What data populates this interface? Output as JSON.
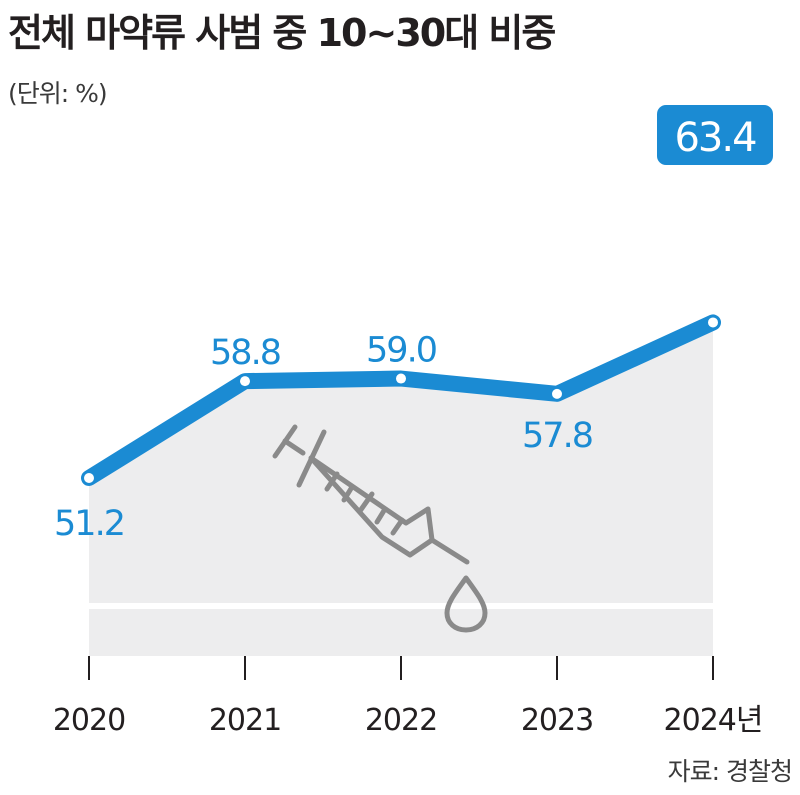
{
  "title": "전체 마약류 사범 중 10~30대 비중",
  "unit_label": "(단위: %)",
  "source": "자료: 경찰청",
  "colors": {
    "line": "#1b8bd3",
    "area": "#ededee",
    "axis": "#231f20",
    "icon": "#8a8a8a"
  },
  "icons": [
    "syringe-icon",
    "drop-icon"
  ],
  "chart_data": {
    "type": "area",
    "categories": [
      "2020",
      "2021",
      "2022",
      "2023",
      "2024년"
    ],
    "x": [
      2020,
      2021,
      2022,
      2023,
      2024
    ],
    "values": [
      51.2,
      58.8,
      59.0,
      57.8,
      63.4
    ],
    "value_labels": [
      "51.2",
      "58.8",
      "59.0",
      "57.8",
      "63.4"
    ],
    "highlight_index": 4,
    "ylabel": "%",
    "grid": false,
    "baseline_value": 40
  }
}
